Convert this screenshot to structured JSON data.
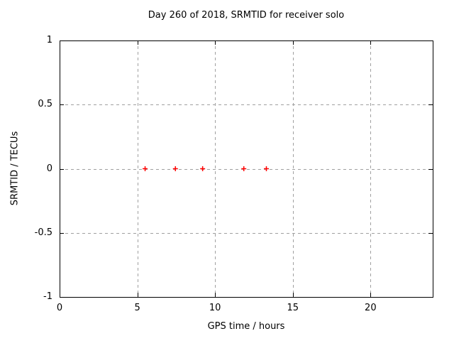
{
  "chart_data": {
    "type": "scatter",
    "title": "Day 260 of 2018, SRMTID for receiver solo",
    "xlabel": "GPS time / hours",
    "ylabel": "SRMTID / TECUs",
    "xlim": [
      0,
      24
    ],
    "ylim": [
      -1,
      1
    ],
    "xticks": [
      0,
      5,
      10,
      15,
      20
    ],
    "yticks": [
      1,
      0.5,
      0,
      -0.5,
      -1
    ],
    "grid": true,
    "legend_position": "none",
    "marker": "plus",
    "marker_color": "#ff0000",
    "grid_color": "#a0a0a0",
    "border_color": "#000000",
    "series": [
      {
        "name": "SRMTID",
        "x": [
          5.5,
          7.45,
          9.2,
          11.85,
          13.3
        ],
        "y": [
          0,
          0,
          0,
          0,
          0
        ]
      }
    ]
  }
}
